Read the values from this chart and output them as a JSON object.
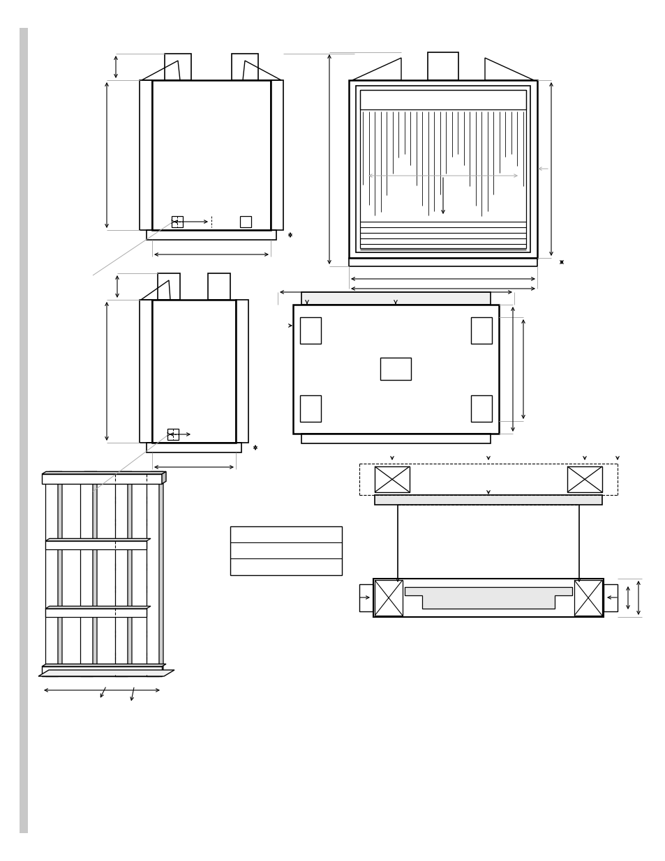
{
  "bg_color": "#ffffff",
  "lc": "#000000",
  "gc": "#aaaaaa",
  "page_width": 9.54,
  "page_height": 12.35
}
